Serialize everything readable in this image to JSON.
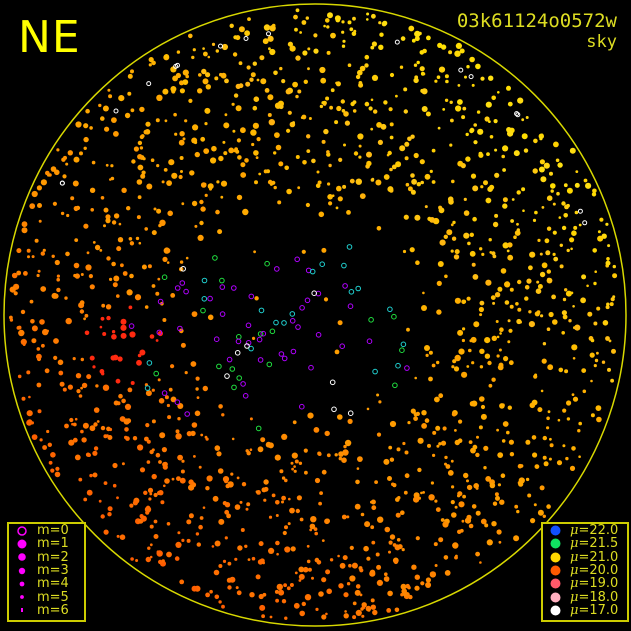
{
  "header": {
    "direction_label": "NE",
    "frame_id": "03k61124o0572w",
    "frame_type": "sky"
  },
  "colors": {
    "ring": "#d8d800",
    "text": "#dddd22",
    "marker_magnitude": "#ff00ff"
  },
  "magnitude_legend": [
    {
      "label": "m=0",
      "symbol": "open-circle"
    },
    {
      "label": "m=1",
      "symbol": "filled-circle"
    },
    {
      "label": "m=2",
      "symbol": "filled-circle"
    },
    {
      "label": "m=3",
      "symbol": "filled-circle"
    },
    {
      "label": "m=4",
      "symbol": "filled-circle"
    },
    {
      "label": "m=5",
      "symbol": "filled-circle"
    },
    {
      "label": "m=6",
      "symbol": "filled-circle"
    }
  ],
  "surface_brightness_legend": [
    {
      "mu_symbol": "μ",
      "value": "=22.0",
      "color": "#1050ff"
    },
    {
      "mu_symbol": "μ",
      "value": "=21.5",
      "color": "#10e060"
    },
    {
      "mu_symbol": "μ",
      "value": "=21.0",
      "color": "#ffd800"
    },
    {
      "mu_symbol": "μ",
      "value": "=20.0",
      "color": "#ff5a00"
    },
    {
      "mu_symbol": "μ",
      "value": "=19.0",
      "color": "#ff5a6a"
    },
    {
      "mu_symbol": "μ",
      "value": "=18.0",
      "color": "#ffb0c0"
    },
    {
      "mu_symbol": "μ",
      "value": "=17.0",
      "color": "#ffffff"
    }
  ]
}
